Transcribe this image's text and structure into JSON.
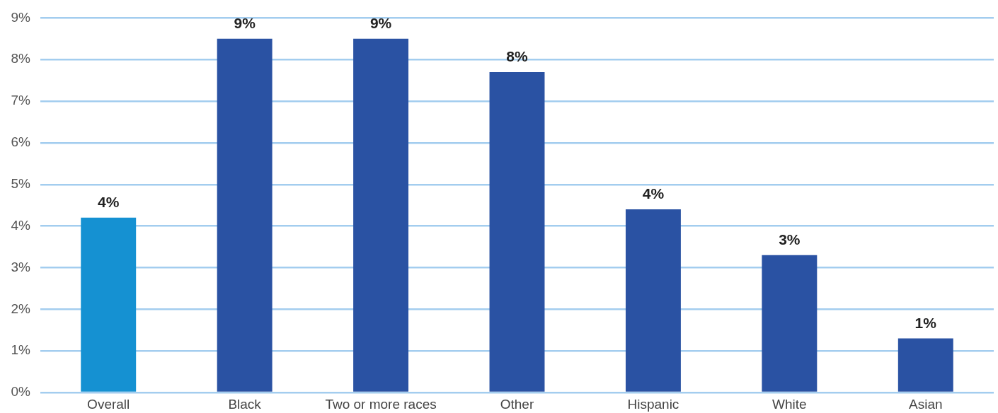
{
  "chart_data": {
    "type": "bar",
    "categories": [
      "Overall",
      "Black",
      "Two or more races",
      "Other",
      "Hispanic",
      "White",
      "Asian"
    ],
    "values": [
      4.2,
      8.5,
      8.5,
      7.7,
      4.4,
      3.3,
      1.3
    ],
    "colors": [
      "#1591d2",
      "#2a52a3",
      "#2a52a3",
      "#2a52a3",
      "#2a52a3",
      "#2a52a3",
      "#2a52a3"
    ],
    "value_labels": [
      "4%",
      "9%",
      "9%",
      "8%",
      "4%",
      "3%",
      "1%"
    ],
    "ylim": [
      0,
      9
    ],
    "yticks": [
      {
        "value": 0,
        "label": "0%"
      },
      {
        "value": 1,
        "label": "1%"
      },
      {
        "value": 2,
        "label": "2%"
      },
      {
        "value": 3,
        "label": "3%"
      },
      {
        "value": 4,
        "label": "4%"
      },
      {
        "value": 5,
        "label": "5%"
      },
      {
        "value": 6,
        "label": "6%"
      },
      {
        "value": 7,
        "label": "7%"
      },
      {
        "value": 8,
        "label": "8%"
      },
      {
        "value": 9,
        "label": "9%"
      }
    ],
    "grid": "y"
  }
}
